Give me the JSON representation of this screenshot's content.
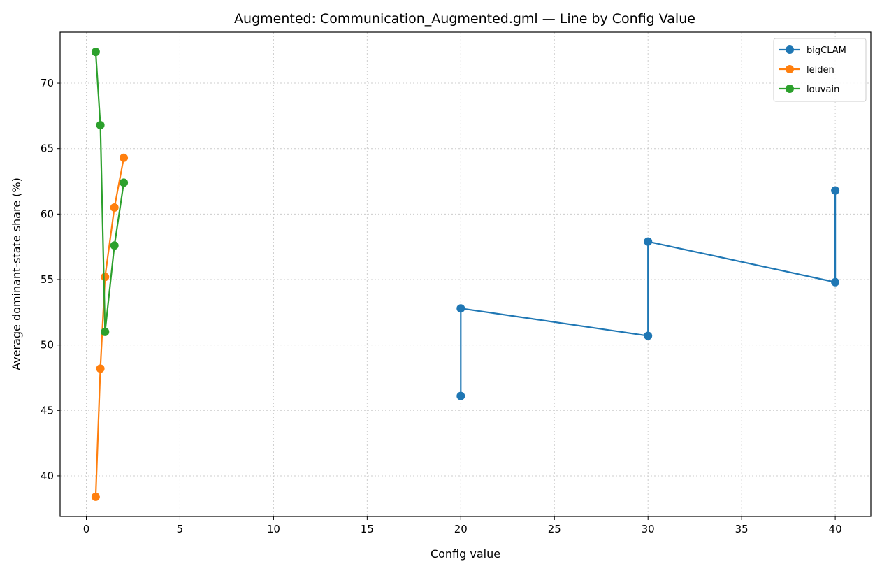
{
  "chart_data": {
    "type": "line",
    "title": "Augmented: Communication_Augmented.gml — Line by Config Value",
    "xlabel": "Config value",
    "ylabel": "Average dominant-state share (%)",
    "xlim": [
      -1.4,
      41.9
    ],
    "ylim": [
      36.9,
      73.9
    ],
    "xticks": [
      0,
      5,
      10,
      15,
      20,
      25,
      30,
      35,
      40
    ],
    "yticks": [
      40,
      45,
      50,
      55,
      60,
      65,
      70
    ],
    "grid": true,
    "legend_position": "top-right",
    "series": [
      {
        "name": "bigCLAM",
        "color": "#1f77b4",
        "points": [
          [
            20,
            46.1
          ],
          [
            20,
            52.8
          ],
          [
            30,
            50.7
          ],
          [
            30,
            57.9
          ],
          [
            40,
            54.8
          ],
          [
            40,
            61.8
          ]
        ]
      },
      {
        "name": "leiden",
        "color": "#ff7f0e",
        "points": [
          [
            0.5,
            38.4
          ],
          [
            0.75,
            48.2
          ],
          [
            1.0,
            55.2
          ],
          [
            1.5,
            60.5
          ],
          [
            2.0,
            64.3
          ]
        ]
      },
      {
        "name": "louvain",
        "color": "#2ca02c",
        "points": [
          [
            0.5,
            72.4
          ],
          [
            0.75,
            66.8
          ],
          [
            1.0,
            51.0
          ],
          [
            1.5,
            57.6
          ],
          [
            2.0,
            62.4
          ]
        ]
      }
    ]
  }
}
